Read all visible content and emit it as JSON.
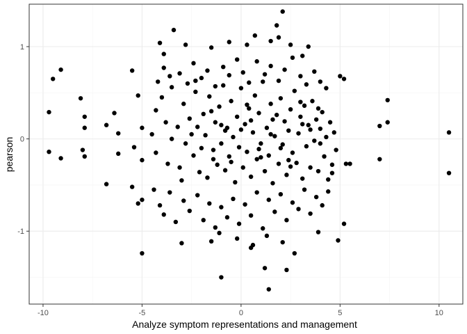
{
  "chart_data": {
    "type": "scatter",
    "title": "",
    "xlabel": "Analyze symptom representations and management",
    "ylabel": "pearson",
    "xlim": [
      -10.7,
      11.2
    ],
    "ylim": [
      -1.79,
      1.46
    ],
    "x_ticks": [
      -10,
      -5,
      0,
      5,
      10
    ],
    "x_tick_labels": [
      "-10",
      "-5",
      "0",
      "5",
      "10"
    ],
    "y_ticks": [
      -1,
      0,
      1
    ],
    "y_tick_labels": [
      "-1",
      "0",
      "1"
    ],
    "grid": true,
    "legend": "none",
    "colors": {
      "point": "#000000",
      "panel_border": "#333333",
      "grid_major": "#ebebeb",
      "grid_minor": "#f5f5f5"
    },
    "points": [
      [
        -9.7,
        0.29
      ],
      [
        -9.7,
        -0.14
      ],
      [
        -9.5,
        0.65
      ],
      [
        -9.1,
        0.75
      ],
      [
        -9.1,
        -0.21
      ],
      [
        -8.1,
        0.44
      ],
      [
        -8.0,
        -0.12
      ],
      [
        -7.9,
        0.24
      ],
      [
        -7.9,
        0.12
      ],
      [
        -7.9,
        -0.19
      ],
      [
        -6.8,
        0.15
      ],
      [
        -6.8,
        -0.49
      ],
      [
        -6.4,
        0.28
      ],
      [
        -6.2,
        0.06
      ],
      [
        -6.2,
        -0.16
      ],
      [
        -5.5,
        0.74
      ],
      [
        -5.5,
        -0.52
      ],
      [
        -5.4,
        -0.09
      ],
      [
        -5.2,
        0.47
      ],
      [
        -5.2,
        -0.7
      ],
      [
        -5.0,
        0.12
      ],
      [
        -5.0,
        -0.23
      ],
      [
        -5.0,
        -0.66
      ],
      [
        -5.0,
        -1.24
      ],
      [
        -4.5,
        0.05
      ],
      [
        -4.3,
        -0.15
      ],
      [
        -4.1,
        1.04
      ],
      [
        -3.9,
        0.92
      ],
      [
        -3.6,
        0.68
      ],
      [
        -3.4,
        1.18
      ],
      [
        -3.0,
        -1.13
      ],
      [
        -2.3,
        0.63
      ],
      [
        -1.5,
        0.99
      ],
      [
        -1.5,
        -1.11
      ],
      [
        -1.0,
        -1.5
      ],
      [
        0.3,
        1.02
      ],
      [
        0.5,
        -1.18
      ],
      [
        1.2,
        -1.4
      ],
      [
        1.4,
        -1.63
      ],
      [
        1.8,
        1.23
      ],
      [
        1.9,
        1.1
      ],
      [
        2.1,
        1.38
      ],
      [
        2.3,
        -1.42
      ],
      [
        2.5,
        1.02
      ],
      [
        2.7,
        -1.24
      ],
      [
        3.1,
        0.9
      ],
      [
        3.9,
        -1.01
      ],
      [
        4.9,
        -1.1
      ],
      [
        5.0,
        0.68
      ],
      [
        5.2,
        0.65
      ],
      [
        5.2,
        -0.92
      ],
      [
        5.3,
        -0.27
      ],
      [
        5.5,
        -0.27
      ],
      [
        7.0,
        0.14
      ],
      [
        7.0,
        -0.22
      ],
      [
        7.4,
        0.42
      ],
      [
        7.4,
        0.18
      ],
      [
        10.5,
        0.07
      ],
      [
        10.5,
        -0.37
      ],
      [
        -4.3,
        0.31
      ],
      [
        -4.0,
        0.45
      ],
      [
        -3.8,
        0.18
      ],
      [
        -3.7,
        -0.27
      ],
      [
        -3.5,
        0.0
      ],
      [
        -3.2,
        0.13
      ],
      [
        -3.1,
        -0.31
      ],
      [
        -2.9,
        0.38
      ],
      [
        -2.8,
        -0.05
      ],
      [
        -2.6,
        0.22
      ],
      [
        -2.4,
        -0.18
      ],
      [
        -2.3,
        0.51
      ],
      [
        -2.1,
        -0.36
      ],
      [
        -1.9,
        0.27
      ],
      [
        -1.8,
        0.04
      ],
      [
        -1.7,
        -0.42
      ],
      [
        -1.6,
        0.46
      ],
      [
        -1.4,
        -0.12
      ],
      [
        -1.3,
        0.18
      ],
      [
        -1.2,
        -0.28
      ],
      [
        -1.1,
        0.35
      ],
      [
        -1.0,
        -0.05
      ],
      [
        -0.9,
        0.58
      ],
      [
        -0.8,
        -0.34
      ],
      [
        -0.7,
        0.12
      ],
      [
        -0.6,
        -0.19
      ],
      [
        -0.5,
        0.41
      ],
      [
        -0.4,
        0.02
      ],
      [
        -0.3,
        -0.47
      ],
      [
        -0.2,
        0.24
      ],
      [
        -0.1,
        -0.09
      ],
      [
        0.0,
        0.55
      ],
      [
        0.1,
        -0.31
      ],
      [
        0.2,
        0.16
      ],
      [
        0.3,
        -0.14
      ],
      [
        0.4,
        0.33
      ],
      [
        0.5,
        -0.41
      ],
      [
        0.6,
        0.07
      ],
      [
        0.7,
        0.47
      ],
      [
        0.8,
        -0.22
      ],
      [
        0.9,
        0.28
      ],
      [
        1.0,
        -0.05
      ],
      [
        1.1,
        0.62
      ],
      [
        1.2,
        -0.35
      ],
      [
        1.3,
        0.12
      ],
      [
        1.4,
        -0.18
      ],
      [
        1.5,
        0.38
      ],
      [
        1.6,
        -0.48
      ],
      [
        1.7,
        0.03
      ],
      [
        1.8,
        0.26
      ],
      [
        1.9,
        -0.27
      ],
      [
        2.0,
        0.44
      ],
      [
        2.1,
        -0.06
      ],
      [
        2.2,
        0.19
      ],
      [
        2.3,
        -0.39
      ],
      [
        2.4,
        0.09
      ],
      [
        2.5,
        0.32
      ],
      [
        2.6,
        -0.15
      ],
      [
        2.7,
        0.52
      ],
      [
        2.8,
        -0.26
      ],
      [
        2.9,
        0.06
      ],
      [
        3.0,
        0.24
      ],
      [
        3.1,
        -0.43
      ],
      [
        3.2,
        0.36
      ],
      [
        3.3,
        -0.08
      ],
      [
        3.4,
        0.15
      ],
      [
        3.5,
        -0.31
      ],
      [
        3.6,
        0.41
      ],
      [
        3.7,
        -0.02
      ],
      [
        3.8,
        0.21
      ],
      [
        3.9,
        -0.35
      ],
      [
        4.0,
        0.11
      ],
      [
        4.1,
        0.29
      ],
      [
        4.2,
        -0.19
      ],
      [
        4.3,
        0.02
      ],
      [
        4.4,
        -0.44
      ],
      [
        4.5,
        0.18
      ],
      [
        4.6,
        -0.28
      ],
      [
        4.7,
        0.07
      ],
      [
        4.8,
        -0.12
      ],
      [
        -4.4,
        -0.55
      ],
      [
        -4.1,
        -0.72
      ],
      [
        -3.9,
        -0.82
      ],
      [
        -3.6,
        -0.58
      ],
      [
        -3.3,
        -0.9
      ],
      [
        -2.9,
        -0.67
      ],
      [
        -2.6,
        -0.78
      ],
      [
        -2.2,
        -0.61
      ],
      [
        -1.9,
        -0.88
      ],
      [
        -1.6,
        -0.7
      ],
      [
        -1.3,
        -0.96
      ],
      [
        -1.0,
        -0.74
      ],
      [
        -0.7,
        -0.85
      ],
      [
        -0.4,
        -0.65
      ],
      [
        -0.1,
        -0.92
      ],
      [
        0.2,
        -0.71
      ],
      [
        0.5,
        -0.83
      ],
      [
        0.8,
        -0.58
      ],
      [
        1.1,
        -0.97
      ],
      [
        1.4,
        -0.66
      ],
      [
        1.7,
        -0.79
      ],
      [
        2.0,
        -0.6
      ],
      [
        2.3,
        -0.88
      ],
      [
        2.6,
        -0.69
      ],
      [
        2.9,
        -0.76
      ],
      [
        3.2,
        -0.55
      ],
      [
        3.5,
        -0.81
      ],
      [
        3.8,
        -0.63
      ],
      [
        4.1,
        -0.72
      ],
      [
        4.4,
        -0.57
      ],
      [
        -4.2,
        0.62
      ],
      [
        -3.9,
        0.77
      ],
      [
        -3.5,
        0.56
      ],
      [
        -3.1,
        0.71
      ],
      [
        -2.7,
        0.6
      ],
      [
        -2.4,
        0.82
      ],
      [
        -2.0,
        0.66
      ],
      [
        -1.7,
        0.74
      ],
      [
        -1.3,
        0.57
      ],
      [
        -0.9,
        0.78
      ],
      [
        -0.6,
        0.69
      ],
      [
        -0.2,
        0.86
      ],
      [
        0.1,
        0.72
      ],
      [
        0.4,
        0.61
      ],
      [
        0.8,
        0.84
      ],
      [
        1.2,
        0.7
      ],
      [
        1.5,
        0.79
      ],
      [
        1.9,
        0.63
      ],
      [
        2.2,
        0.75
      ],
      [
        2.6,
        0.88
      ],
      [
        3.0,
        0.68
      ],
      [
        3.3,
        0.59
      ],
      [
        3.7,
        0.73
      ],
      [
        4.0,
        0.62
      ],
      [
        4.3,
        0.55
      ],
      [
        -3.0,
        -0.45
      ],
      [
        -2.5,
        0.05
      ],
      [
        -2.0,
        -0.1
      ],
      [
        -1.5,
        0.3
      ],
      [
        -1.0,
        0.15
      ],
      [
        -0.5,
        -0.25
      ],
      [
        0.0,
        0.1
      ],
      [
        0.5,
        0.2
      ],
      [
        1.0,
        -0.2
      ],
      [
        1.5,
        0.05
      ],
      [
        2.0,
        -0.1
      ],
      [
        2.5,
        -0.3
      ],
      [
        3.0,
        0.4
      ],
      [
        3.5,
        0.1
      ],
      [
        4.0,
        -0.05
      ],
      [
        -2.2,
        0.13
      ],
      [
        -1.4,
        -0.22
      ],
      [
        -0.8,
        0.09
      ],
      [
        0.3,
        0.37
      ],
      [
        0.9,
        -0.11
      ],
      [
        1.6,
        0.21
      ],
      [
        2.4,
        -0.23
      ],
      [
        3.1,
        0.16
      ],
      [
        3.9,
        0.33
      ],
      [
        4.6,
        -0.37
      ],
      [
        -1.1,
        -1.02
      ],
      [
        -0.2,
        -1.08
      ],
      [
        0.6,
        -1.15
      ],
      [
        1.3,
        -1.05
      ],
      [
        2.1,
        -1.12
      ],
      [
        -0.6,
        1.05
      ],
      [
        0.7,
        1.12
      ],
      [
        1.5,
        1.06
      ],
      [
        -2.8,
        1.02
      ],
      [
        3.4,
        1.0
      ]
    ]
  }
}
